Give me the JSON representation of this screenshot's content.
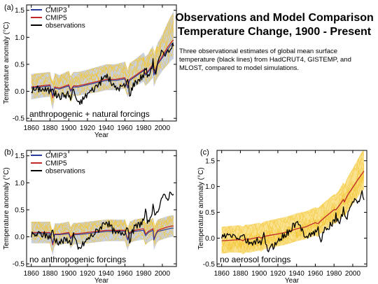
{
  "header": {
    "title_line1": "Observations and Model Comparison",
    "title_line2": "Temperature Change, 1900 - Present",
    "description": "Three observational estimates of global mean surface temperature (black lines) from HadCRUT4, GISTEMP, and MLOST, compared to model simulations."
  },
  "colors": {
    "cmip3": "#2a3a9a",
    "cmip5": "#c0282a",
    "observations": "#000000",
    "cmip3_spread": "#b7c2d6",
    "cmip5_spread": "#f4c630",
    "cmip5_spread_light": "#f8dc7a"
  },
  "chart_data": [
    {
      "type": "line",
      "panel_label": "(a)",
      "annotation": "anthropogenic + natural forcings",
      "xlabel": "Year",
      "ylabel": "Temperature anomaly (°C)",
      "xlim": [
        1855,
        2015
      ],
      "ylim": [
        -0.55,
        1.6
      ],
      "x_ticks": [
        "1860",
        "1880",
        "1900",
        "1920",
        "1940",
        "1960",
        "1980",
        "2000"
      ],
      "y_ticks": [
        "-0.5",
        "0.0",
        "0.5",
        "1.0",
        "1.5"
      ],
      "legend": [
        "CMIP3",
        "CMIP5",
        "observations"
      ],
      "legend_position": "top-left",
      "x": [
        1860,
        1870,
        1880,
        1883,
        1885,
        1890,
        1900,
        1902,
        1905,
        1910,
        1920,
        1930,
        1940,
        1950,
        1960,
        1963,
        1965,
        1970,
        1980,
        1982,
        1985,
        1990,
        1991,
        1993,
        1995,
        2000,
        2005,
        2010,
        2012
      ],
      "series": [
        {
          "name": "CMIP5",
          "values": [
            0.08,
            0.1,
            0.12,
            -0.12,
            0.08,
            0.06,
            0.12,
            0.02,
            0.1,
            0.1,
            0.14,
            0.18,
            0.22,
            0.22,
            0.25,
            0.08,
            0.22,
            0.28,
            0.4,
            0.32,
            0.38,
            0.5,
            0.32,
            0.42,
            0.52,
            0.65,
            0.8,
            0.92,
            0.95
          ]
        },
        {
          "name": "CMIP3",
          "values": [
            0.06,
            0.08,
            0.1,
            -0.08,
            0.06,
            0.04,
            0.1,
            0.0,
            0.08,
            0.08,
            0.12,
            0.16,
            0.2,
            0.2,
            0.23,
            0.06,
            0.2,
            0.26,
            0.38,
            0.3,
            0.36,
            0.48,
            0.3,
            0.4,
            0.5,
            0.62,
            0.76,
            0.88,
            0.9
          ]
        },
        {
          "name": "observations",
          "values": [
            0.02,
            0.05,
            0.0,
            0.1,
            -0.05,
            -0.1,
            -0.05,
            -0.15,
            0.05,
            -0.25,
            -0.05,
            0.1,
            0.3,
            0.05,
            0.1,
            0.2,
            -0.05,
            0.15,
            0.3,
            0.45,
            0.25,
            0.55,
            0.45,
            0.35,
            0.5,
            0.75,
            0.7,
            0.85,
            0.8
          ]
        }
      ],
      "spread_low": [
        -0.15,
        -0.12,
        -0.1,
        -0.35,
        -0.1,
        -0.12,
        -0.08,
        -0.2,
        -0.08,
        -0.08,
        -0.05,
        -0.02,
        0.02,
        0.02,
        0.05,
        -0.12,
        0.02,
        0.08,
        0.18,
        0.1,
        0.15,
        0.25,
        0.08,
        0.18,
        0.25,
        0.38,
        0.48,
        0.58,
        0.6
      ],
      "spread_high": [
        0.32,
        0.34,
        0.36,
        0.15,
        0.34,
        0.3,
        0.38,
        0.28,
        0.36,
        0.36,
        0.4,
        0.45,
        0.5,
        0.5,
        0.55,
        0.38,
        0.52,
        0.58,
        0.72,
        0.64,
        0.7,
        0.85,
        0.68,
        0.78,
        0.9,
        1.05,
        1.25,
        1.42,
        1.48
      ]
    },
    {
      "type": "line",
      "panel_label": "(b)",
      "annotation": "no anthropogenic forcings",
      "xlabel": "Year",
      "ylabel": "Temperature anomaly (°C)",
      "xlim": [
        1855,
        2015
      ],
      "ylim": [
        -0.55,
        1.6
      ],
      "x_ticks": [
        "1860",
        "1880",
        "1900",
        "1920",
        "1940",
        "1960",
        "1980",
        "2000"
      ],
      "y_ticks": [
        "-0.5",
        "0.0",
        "0.5",
        "1.0",
        "1.5"
      ],
      "legend": [
        "CMIP3",
        "CMIP5",
        "observations"
      ],
      "legend_position": "top-left",
      "x": [
        1860,
        1870,
        1880,
        1883,
        1885,
        1890,
        1900,
        1902,
        1905,
        1910,
        1920,
        1930,
        1940,
        1950,
        1960,
        1963,
        1965,
        1970,
        1980,
        1982,
        1985,
        1990,
        1991,
        1993,
        1995,
        2000,
        2005,
        2010,
        2012
      ],
      "series": [
        {
          "name": "CMIP5",
          "values": [
            0.08,
            0.08,
            0.08,
            -0.15,
            0.05,
            0.05,
            0.08,
            -0.02,
            0.06,
            0.06,
            0.08,
            0.1,
            0.12,
            0.12,
            0.12,
            -0.05,
            0.08,
            0.12,
            0.15,
            0.05,
            0.1,
            0.15,
            -0.05,
            0.05,
            0.12,
            0.15,
            0.18,
            0.2,
            0.2
          ]
        },
        {
          "name": "CMIP3",
          "values": [
            0.06,
            0.06,
            0.06,
            -0.12,
            0.04,
            0.04,
            0.06,
            -0.04,
            0.04,
            0.04,
            0.06,
            0.08,
            0.1,
            0.1,
            0.1,
            -0.06,
            0.06,
            0.1,
            0.12,
            0.02,
            0.08,
            0.12,
            -0.06,
            0.04,
            0.1,
            0.12,
            0.14,
            0.16,
            0.16
          ]
        },
        {
          "name": "observations",
          "values": [
            0.02,
            0.05,
            0.0,
            0.1,
            -0.05,
            -0.1,
            -0.05,
            -0.15,
            0.05,
            -0.25,
            -0.05,
            0.1,
            0.3,
            0.05,
            0.1,
            0.2,
            -0.05,
            0.15,
            0.3,
            0.45,
            0.25,
            0.55,
            0.45,
            0.35,
            0.5,
            0.75,
            0.7,
            0.85,
            0.8
          ]
        }
      ],
      "spread_low": [
        -0.12,
        -0.12,
        -0.12,
        -0.35,
        -0.15,
        -0.15,
        -0.12,
        -0.22,
        -0.14,
        -0.14,
        -0.12,
        -0.1,
        -0.08,
        -0.08,
        -0.08,
        -0.25,
        -0.12,
        -0.08,
        -0.05,
        -0.15,
        -0.1,
        -0.05,
        -0.25,
        -0.15,
        -0.08,
        -0.05,
        -0.02,
        0.0,
        0.0
      ],
      "spread_high": [
        0.28,
        0.28,
        0.28,
        0.05,
        0.25,
        0.25,
        0.28,
        0.18,
        0.26,
        0.26,
        0.28,
        0.3,
        0.32,
        0.32,
        0.32,
        0.15,
        0.28,
        0.32,
        0.35,
        0.25,
        0.3,
        0.35,
        0.15,
        0.25,
        0.32,
        0.35,
        0.38,
        0.4,
        0.4
      ]
    },
    {
      "type": "line",
      "panel_label": "(c)",
      "annotation": "no aerosol forcings",
      "xlabel": "Year",
      "ylabel": "Temperature anomaly (°C)",
      "xlim": [
        1855,
        2015
      ],
      "ylim": [
        -0.55,
        1.7
      ],
      "x_ticks": [
        "1860",
        "1880",
        "1900",
        "1920",
        "1940",
        "1960",
        "1980",
        "2000"
      ],
      "y_ticks": [
        "-0.5",
        "0.0",
        "0.5",
        "1.0",
        "1.5"
      ],
      "x": [
        1860,
        1870,
        1880,
        1883,
        1885,
        1890,
        1900,
        1902,
        1905,
        1910,
        1920,
        1930,
        1940,
        1950,
        1960,
        1963,
        1965,
        1970,
        1980,
        1982,
        1985,
        1990,
        1991,
        1993,
        1995,
        2000,
        2005,
        2010,
        2012
      ],
      "series": [
        {
          "name": "CMIP5",
          "values": [
            -0.05,
            -0.04,
            -0.03,
            -0.05,
            -0.02,
            -0.02,
            0.02,
            0.0,
            0.03,
            0.05,
            0.08,
            0.12,
            0.18,
            0.22,
            0.3,
            0.28,
            0.32,
            0.4,
            0.55,
            0.55,
            0.62,
            0.75,
            0.7,
            0.78,
            0.85,
            0.98,
            1.12,
            1.25,
            1.3
          ]
        },
        {
          "name": "observations",
          "values": [
            0.02,
            0.05,
            0.0,
            0.1,
            -0.05,
            -0.1,
            -0.05,
            -0.15,
            0.05,
            -0.25,
            -0.05,
            0.1,
            0.3,
            0.05,
            0.1,
            0.2,
            -0.05,
            0.15,
            0.3,
            0.45,
            0.25,
            0.55,
            0.45,
            0.35,
            0.5,
            0.75,
            0.7,
            0.85,
            0.8
          ]
        }
      ],
      "spread_low": [
        -0.3,
        -0.28,
        -0.28,
        -0.32,
        -0.28,
        -0.28,
        -0.24,
        -0.26,
        -0.22,
        -0.2,
        -0.16,
        -0.12,
        -0.06,
        -0.02,
        0.05,
        0.02,
        0.08,
        0.15,
        0.28,
        0.28,
        0.35,
        0.45,
        0.4,
        0.48,
        0.55,
        0.65,
        0.78,
        0.9,
        0.95
      ],
      "spread_high": [
        0.22,
        0.24,
        0.25,
        0.22,
        0.26,
        0.26,
        0.3,
        0.28,
        0.32,
        0.34,
        0.38,
        0.42,
        0.48,
        0.52,
        0.6,
        0.58,
        0.62,
        0.7,
        0.85,
        0.85,
        0.92,
        1.08,
        1.02,
        1.12,
        1.2,
        1.35,
        1.52,
        1.68,
        1.72
      ]
    }
  ]
}
